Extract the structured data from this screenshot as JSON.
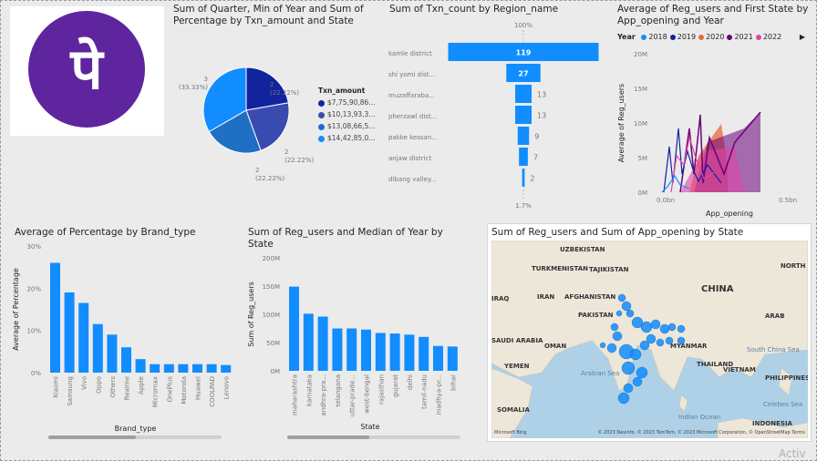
{
  "logo": {
    "glyph": "पे",
    "bg": "#5f259f"
  },
  "pie": {
    "title": "Sum of Quarter, Min of Year and Sum of Percentage by Txn_amount and State",
    "legend_title": "Txn_amount",
    "slice_labels": [
      {
        "count": "2",
        "pct": "(22.22%)"
      },
      {
        "count": "2",
        "pct": "(22.22%)"
      },
      {
        "count": "2",
        "pct": "(22.22%)"
      },
      {
        "count": "3",
        "pct": "(33.33%)"
      }
    ],
    "legend": [
      "$7,75,90,86...",
      "$10,13,93,3...",
      "$13,08,66,5...",
      "$14,42,85,0..."
    ]
  },
  "funnel": {
    "title": "Sum of Txn_count by Region_name",
    "top_pct": "100%",
    "bottom_pct": "1.7%",
    "rows": [
      {
        "label": "kamle district",
        "value": "119"
      },
      {
        "label": "shi yomi dist...",
        "value": "27"
      },
      {
        "label": "muzaffaraba...",
        "value": "13"
      },
      {
        "label": "pherzawl dist...",
        "value": "13"
      },
      {
        "label": "pakke kessan...",
        "value": "9"
      },
      {
        "label": "anjaw district",
        "value": "7"
      },
      {
        "label": "dibang valley...",
        "value": "2"
      }
    ]
  },
  "area": {
    "title": "Average of Reg_users and First State by App_opening and Year",
    "legend_label": "Year",
    "years": [
      "2018",
      "2019",
      "2020",
      "2021",
      "2022"
    ],
    "year_colors": [
      "#118dff",
      "#12239e",
      "#e66c37",
      "#6b007b",
      "#e044a7"
    ],
    "y_ticks": [
      "20M",
      "15M",
      "10M",
      "5M",
      "0M"
    ],
    "x_ticks": [
      "0.0bn",
      "0.5bn"
    ],
    "xlabel": "App_opening",
    "ylabel": "Average of Reg_users"
  },
  "brand": {
    "title": "Average of Percentage by Brand_type",
    "xlabel": "Brand_type",
    "ylabel": "Average of Percentage",
    "y_ticks": [
      "30%",
      "20%",
      "10%",
      "0%"
    ]
  },
  "state": {
    "title": "Sum of Reg_users and Median of Year by State",
    "xlabel": "State",
    "ylabel": "Sum of Reg_users",
    "y_ticks": [
      "200M",
      "150M",
      "100M",
      "50M",
      "0M"
    ]
  },
  "map": {
    "title": "Sum of Reg_users and Sum of App_opening by State",
    "labels": [
      "UZBEKISTAN",
      "TURKMENISTAN",
      "TAJIKISTAN",
      "NORTH",
      "IRAQ",
      "IRAN",
      "AFGHANISTAN",
      "CHINA",
      "PAKISTAN",
      "SAUDI ARABIA",
      "OMAN",
      "MYANMAR",
      "YEMEN",
      "THAILAND",
      "VIETNAM",
      "Arabian Sea",
      "South China Sea",
      "PHILIPPINES",
      "SOMALIA",
      "Indian Ocean",
      "INDONESIA",
      "Celebes Sea",
      "ARAB"
    ],
    "attribution": "© 2023 Navinfo, © 2023 TomTom, © 2023 Microsoft Corporation, © OpenStreetMap Terms",
    "brand": "Microsoft Bing"
  },
  "watermark": "Activ",
  "chart_data": [
    {
      "type": "pie",
      "title": "Sum of Quarter, Min of Year and Sum of Percentage by Txn_amount and State",
      "categories": [
        "$7,75,90,86...",
        "$10,13,93,3...",
        "$13,08,66,5...",
        "$14,42,85,0..."
      ],
      "values": [
        2,
        2,
        2,
        3
      ],
      "colors": [
        "#12239e",
        "#3a4bb0",
        "#1f6fc5",
        "#118dff"
      ]
    },
    {
      "type": "bar",
      "title": "Sum of Txn_count by Region_name",
      "categories": [
        "kamle district",
        "shi yomi dist...",
        "muzaffaraba...",
        "pherzawl dist...",
        "pakke kessan...",
        "anjaw district",
        "dibang valley..."
      ],
      "values": [
        119,
        27,
        13,
        13,
        9,
        7,
        2
      ]
    },
    {
      "type": "bar",
      "title": "Average of Percentage by Brand_type",
      "categories": [
        "Xiaomi",
        "Samsung",
        "Vivo",
        "Oppo",
        "Others",
        "Realme",
        "Apple",
        "Micromax",
        "OnePlus",
        "Motorola",
        "Huawei",
        "COOLPAD",
        "Lenovo"
      ],
      "values": [
        26,
        19,
        16.5,
        11.5,
        9,
        6,
        3.2,
        2,
        2,
        2,
        2,
        2,
        1.8
      ],
      "ylim": [
        0,
        30
      ],
      "xlabel": "Brand_type",
      "ylabel": "Average of Percentage"
    },
    {
      "type": "bar",
      "title": "Sum of Reg_users and Median of Year by State",
      "categories": [
        "maharashtra",
        "karnataka",
        "andhra-pra...",
        "telangana",
        "uttar-prade...",
        "west-bengal",
        "rajasthan",
        "gujarat",
        "delhi",
        "tamil-nadu",
        "madhya-pr...",
        "bihar"
      ],
      "values": [
        149,
        101,
        96,
        75,
        75,
        73,
        67,
        66,
        64,
        60,
        44,
        43
      ],
      "ylim": [
        0,
        200
      ],
      "xlabel": "State",
      "ylabel": "Sum of Reg_users"
    }
  ]
}
